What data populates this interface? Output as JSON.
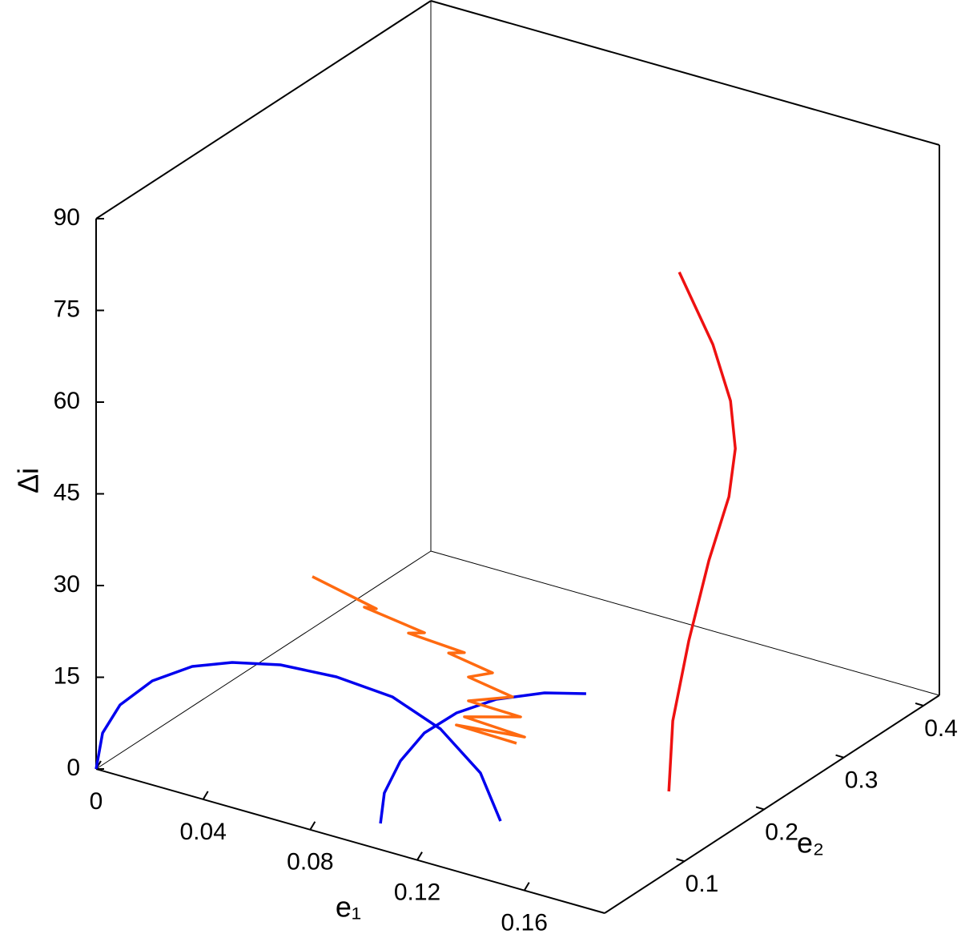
{
  "chart_data": {
    "type": "line3d",
    "xlabel": "e₁",
    "ylabel": "e₂",
    "zlabel": "Δi",
    "xlim": [
      0,
      0.19
    ],
    "ylim": [
      0,
      0.42
    ],
    "zlim": [
      0,
      90
    ],
    "xticks": [
      0,
      0.04,
      0.08,
      0.12,
      0.16
    ],
    "yticks": [
      0.1,
      0.2,
      0.3,
      0.4
    ],
    "zticks": [
      0,
      15,
      30,
      45,
      60,
      75,
      90
    ],
    "series": [
      {
        "color": "#0000ee",
        "x": [
          0,
          -0.0127,
          -0.0194,
          -0.0206,
          -0.016,
          -0.0072,
          0.0063,
          0.0257,
          0.0483,
          0.0736,
          0.1016,
          0.1261
        ],
        "y": [
          0,
          0.0508,
          0.0952,
          0.1397,
          0.1743,
          0.1949,
          0.21,
          0.2152,
          0.2096,
          0.1849,
          0.141,
          0.084
        ],
        "z": [
          0,
          0,
          0,
          0,
          0,
          0,
          0,
          0,
          0,
          0,
          0,
          0
        ]
      },
      {
        "color": "#0000ee",
        "x": [
          0.0958,
          0.0846,
          0.076,
          0.071,
          0.0714,
          0.0763,
          0.0863,
          0.0974
        ],
        "y": [
          0.0351,
          0.0775,
          0.1266,
          0.1734,
          0.2125,
          0.246,
          0.2729,
          0.2877
        ],
        "z": [
          0,
          0,
          0,
          0,
          0,
          0,
          0,
          0
        ]
      },
      {
        "color": "#ff6a10",
        "x": [
          0.0808,
          0.1047,
          0.1002,
          0.1227,
          0.1167,
          0.1376,
          0.1317,
          0.1481,
          0.1391,
          0.1556,
          0.1391,
          0.1586,
          0.1376,
          0.1601,
          0.1346,
          0.1571
        ],
        "y": [
          0,
          0,
          0,
          0,
          0,
          0,
          0,
          0,
          0,
          0,
          0,
          0,
          0,
          0,
          0,
          0
        ],
        "z": [
          41.5,
          39.2,
          38.9,
          37.5,
          36.7,
          36.1,
          35.3,
          34.1,
          32.3,
          31.1,
          28.4,
          28.2,
          25.6,
          25.1,
          23.9,
          23.7
        ]
      },
      {
        "color": "#ee1111",
        "x": [
          0.17,
          0.17,
          0.17,
          0.17,
          0.17,
          0.17,
          0.17,
          0.17,
          0.17
        ],
        "y": [
          0.1477,
          0.1527,
          0.1728,
          0.198,
          0.2231,
          0.2311,
          0.2251,
          0.203,
          0.1608
        ],
        "z": [
          4.9,
          16.0,
          27.4,
          38.4,
          46.7,
          53.9,
          62.2,
          73.3,
          88.7
        ]
      }
    ]
  }
}
